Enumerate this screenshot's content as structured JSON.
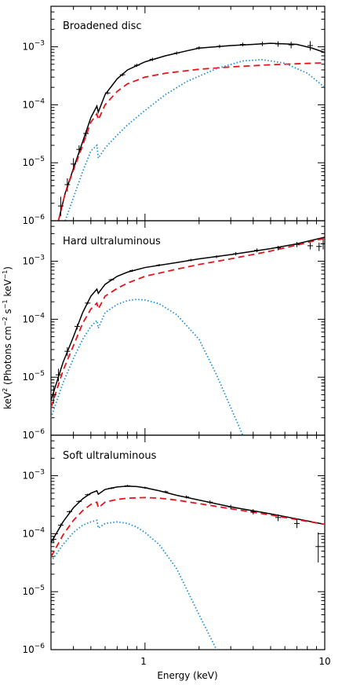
{
  "figure": {
    "ylabel_base": "keV",
    "ylabel_body": " (Photons cm",
    "ylabel_mid": " s",
    "ylabel_tail": " keV",
    "ylabel_close": ")",
    "ylabel_sup_2": "2",
    "ylabel_sup_minus2": "−2",
    "ylabel_sup_minus1": "−1",
    "xlabel": "Energy (keV)",
    "x_tick_labels": [
      "1",
      "10"
    ],
    "y_tick_labels": [
      {
        "base": "10",
        "exp": "−3"
      },
      {
        "base": "10",
        "exp": "−4"
      },
      {
        "base": "10",
        "exp": "−5"
      },
      {
        "base": "10",
        "exp": "−6"
      }
    ]
  },
  "colors": {
    "data": "#000000",
    "total_model": "#000000",
    "powerlaw_component": "#e8141b",
    "disc_component": "#1f8fd6"
  },
  "chart_data": [
    {
      "type": "line",
      "title": "Broadened disc",
      "xlabel": "Energy (keV)",
      "ylabel": "keV² (Photons cm⁻² s⁻¹ keV⁻¹)",
      "xscale": "log",
      "yscale": "log",
      "xlim": [
        0.3,
        10
      ],
      "ylim": [
        1e-06,
        0.005
      ],
      "series": [
        {
          "style": "solid",
          "color": "#000000",
          "x": [
            0.33,
            0.36,
            0.4,
            0.45,
            0.5,
            0.54,
            0.55,
            0.6,
            0.7,
            0.8,
            1.0,
            1.3,
            1.7,
            2.0,
            3.0,
            4.0,
            5.0,
            7.0,
            8.5,
            10.0
          ],
          "y": [
            1e-06,
            3e-06,
            8e-06,
            2.3e-05,
            6e-05,
            9.5e-05,
            7.5e-05,
            0.00015,
            0.00028,
            0.0004,
            0.00055,
            0.0007,
            0.00085,
            0.00095,
            0.00105,
            0.0011,
            0.00115,
            0.0011,
            0.00095,
            0.0008
          ]
        },
        {
          "style": "dashed",
          "color": "#e8141b",
          "x": [
            0.33,
            0.36,
            0.4,
            0.45,
            0.5,
            0.54,
            0.55,
            0.6,
            0.7,
            0.8,
            1.0,
            1.3,
            2.0,
            3.0,
            5.0,
            7.0,
            10.0
          ],
          "y": [
            1e-06,
            3e-06,
            7.5e-06,
            2e-05,
            5e-05,
            7e-05,
            5.5e-05,
            0.0001,
            0.00017,
            0.00023,
            0.0003,
            0.00035,
            0.00041,
            0.00045,
            0.00049,
            0.00051,
            0.00053
          ]
        },
        {
          "style": "dotted",
          "color": "#1f8fd6",
          "x": [
            0.36,
            0.4,
            0.45,
            0.5,
            0.54,
            0.55,
            0.6,
            0.7,
            0.8,
            1.0,
            1.3,
            1.7,
            2.5,
            3.5,
            4.5,
            6.0,
            8.0,
            10.0
          ],
          "y": [
            1e-06,
            2.5e-06,
            7e-06,
            1.6e-05,
            2e-05,
            1.2e-05,
            1.8e-05,
            3e-05,
            4.5e-05,
            8e-05,
            0.00015,
            0.00025,
            0.00042,
            0.00057,
            0.0006,
            0.00052,
            0.00035,
            0.0002
          ]
        }
      ],
      "data_points": [
        {
          "x": 0.34,
          "y": 1.8e-06,
          "yerr": [
            1.2e-06,
            2.6e-06
          ]
        },
        {
          "x": 0.37,
          "y": 4.2e-06,
          "yerr": [
            3.2e-06,
            5.4e-06
          ]
        },
        {
          "x": 0.4,
          "y": 9.5e-06,
          "yerr": [
            7.6e-06,
            1.2e-05
          ]
        },
        {
          "x": 0.43,
          "y": 1.7e-05,
          "yerr": [
            1.4e-05,
            2e-05
          ]
        },
        {
          "x": 0.47,
          "y": 3.2e-05,
          "yerr": [
            2.8e-05,
            3.6e-05
          ]
        },
        {
          "x": 0.62,
          "y": 0.00016,
          "yerr": [
            0.00015,
            0.00017
          ]
        },
        {
          "x": 0.75,
          "y": 0.00033,
          "yerr": [
            0.00031,
            0.00035
          ]
        },
        {
          "x": 0.9,
          "y": 0.00048,
          "yerr": [
            0.00045,
            0.00051
          ]
        },
        {
          "x": 1.1,
          "y": 0.00061,
          "yerr": [
            0.00057,
            0.00065
          ]
        },
        {
          "x": 1.5,
          "y": 0.00078,
          "yerr": [
            0.00073,
            0.00083
          ]
        },
        {
          "x": 2.0,
          "y": 0.00096,
          "yerr": [
            0.0009,
            0.00102
          ]
        },
        {
          "x": 2.6,
          "y": 0.00102,
          "yerr": [
            0.00095,
            0.00109
          ]
        },
        {
          "x": 3.5,
          "y": 0.0011,
          "yerr": [
            0.00102,
            0.00118
          ]
        },
        {
          "x": 4.5,
          "y": 0.00113,
          "yerr": [
            0.00103,
            0.00123
          ]
        },
        {
          "x": 5.5,
          "y": 0.00112,
          "yerr": [
            0.001,
            0.00124
          ]
        },
        {
          "x": 6.5,
          "y": 0.00108,
          "yerr": [
            0.00094,
            0.00122
          ]
        },
        {
          "x": 8.3,
          "y": 0.00105,
          "yerr": [
            0.00086,
            0.00125
          ]
        }
      ]
    },
    {
      "type": "line",
      "title": "Hard ultraluminous",
      "xlabel": "Energy (keV)",
      "ylabel": "keV² (Photons cm⁻² s⁻¹ keV⁻¹)",
      "xscale": "log",
      "yscale": "log",
      "xlim": [
        0.3,
        10
      ],
      "ylim": [
        1e-06,
        0.005
      ],
      "series": [
        {
          "style": "solid",
          "color": "#000000",
          "x": [
            0.3,
            0.35,
            0.4,
            0.45,
            0.5,
            0.54,
            0.55,
            0.6,
            0.7,
            0.8,
            1.0,
            1.5,
            2.0,
            3.0,
            5.0,
            7.0,
            10.0
          ],
          "y": [
            4e-06,
            1.8e-05,
            5e-05,
            0.00013,
            0.00025,
            0.00033,
            0.00028,
            0.0004,
            0.00055,
            0.00065,
            0.00078,
            0.00095,
            0.0011,
            0.0013,
            0.00165,
            0.002,
            0.0026
          ]
        },
        {
          "style": "dashed",
          "color": "#e8141b",
          "x": [
            0.3,
            0.35,
            0.4,
            0.45,
            0.5,
            0.54,
            0.55,
            0.6,
            0.7,
            0.8,
            1.0,
            1.5,
            2.0,
            3.0,
            5.0,
            7.0,
            10.0
          ],
          "y": [
            3e-06,
            1.3e-05,
            3.5e-05,
            8.5e-05,
            0.00015,
            0.00019,
            0.00015,
            0.00025,
            0.00034,
            0.00042,
            0.00055,
            0.00073,
            0.00088,
            0.0011,
            0.0015,
            0.0019,
            0.0025
          ]
        },
        {
          "style": "dotted",
          "color": "#1f8fd6",
          "x": [
            0.3,
            0.35,
            0.4,
            0.45,
            0.5,
            0.54,
            0.55,
            0.6,
            0.7,
            0.8,
            0.9,
            1.0,
            1.2,
            1.5,
            2.0,
            2.5,
            3.0,
            3.5
          ],
          "y": [
            2e-06,
            8e-06,
            2.1e-05,
            4.5e-05,
            7.5e-05,
            9.5e-05,
            7e-05,
            0.00013,
            0.00018,
            0.00021,
            0.00022,
            0.000215,
            0.000185,
            0.00012,
            4.5e-05,
            1.1e-05,
            3e-06,
            1e-06
          ]
        }
      ],
      "data_points": [
        {
          "x": 0.31,
          "y": 5e-06,
          "yerr": [
            3.5e-06,
            7e-06
          ]
        },
        {
          "x": 0.33,
          "y": 1.1e-05,
          "yerr": [
            8.5e-06,
            1.4e-05
          ]
        },
        {
          "x": 0.37,
          "y": 2.8e-05,
          "yerr": [
            2.3e-05,
            3.3e-05
          ]
        },
        {
          "x": 0.42,
          "y": 7.5e-05,
          "yerr": [
            6.7e-05,
            8.3e-05
          ]
        },
        {
          "x": 0.48,
          "y": 0.00019,
          "yerr": [
            0.00018,
            0.0002
          ]
        },
        {
          "x": 0.65,
          "y": 0.00048,
          "yerr": [
            0.00046,
            0.0005
          ]
        },
        {
          "x": 0.85,
          "y": 0.00069,
          "yerr": [
            0.00066,
            0.00072
          ]
        },
        {
          "x": 1.2,
          "y": 0.00086,
          "yerr": [
            0.00082,
            0.0009
          ]
        },
        {
          "x": 1.8,
          "y": 0.00105,
          "yerr": [
            0.001,
            0.0011
          ]
        },
        {
          "x": 2.5,
          "y": 0.0012,
          "yerr": [
            0.00113,
            0.00127
          ]
        },
        {
          "x": 3.2,
          "y": 0.00135,
          "yerr": [
            0.00126,
            0.00144
          ]
        },
        {
          "x": 4.2,
          "y": 0.00155,
          "yerr": [
            0.00143,
            0.00167
          ]
        },
        {
          "x": 5.5,
          "y": 0.0017,
          "yerr": [
            0.00155,
            0.00185
          ]
        },
        {
          "x": 7.0,
          "y": 0.00195,
          "yerr": [
            0.00175,
            0.00215
          ]
        },
        {
          "x": 8.3,
          "y": 0.00185,
          "yerr": [
            0.0016,
            0.0021
          ]
        },
        {
          "x": 9.3,
          "y": 0.0018,
          "yerr": [
            0.0015,
            0.0021
          ]
        },
        {
          "x": 9.8,
          "y": 0.002,
          "yerr": [
            0.0016,
            0.0024
          ]
        }
      ]
    },
    {
      "type": "line",
      "title": "Soft ultraluminous",
      "xlabel": "Energy (keV)",
      "ylabel": "keV² (Photons cm⁻² s⁻¹ keV⁻¹)",
      "xscale": "log",
      "yscale": "log",
      "xlim": [
        0.3,
        10
      ],
      "ylim": [
        1e-06,
        0.005
      ],
      "series": [
        {
          "style": "solid",
          "color": "#000000",
          "x": [
            0.3,
            0.35,
            0.4,
            0.45,
            0.5,
            0.54,
            0.55,
            0.6,
            0.7,
            0.8,
            0.9,
            1.0,
            1.2,
            1.5,
            2.0,
            3.0,
            5.0,
            7.0,
            10.0
          ],
          "y": [
            7e-05,
            0.00016,
            0.00028,
            0.0004,
            0.0005,
            0.00055,
            0.00048,
            0.00058,
            0.00064,
            0.00066,
            0.00065,
            0.00062,
            0.00055,
            0.00046,
            0.00038,
            0.00029,
            0.00022,
            0.00018,
            0.000145
          ]
        },
        {
          "style": "dashed",
          "color": "#e8141b",
          "x": [
            0.3,
            0.35,
            0.4,
            0.45,
            0.5,
            0.54,
            0.55,
            0.6,
            0.7,
            0.8,
            1.0,
            1.2,
            1.5,
            2.0,
            3.0,
            5.0,
            7.0,
            10.0
          ],
          "y": [
            4e-05,
            9.5e-05,
            0.00017,
            0.00025,
            0.00032,
            0.00035,
            0.00028,
            0.00035,
            0.00039,
            0.00041,
            0.00042,
            0.00041,
            0.00038,
            0.00033,
            0.00027,
            0.00021,
            0.000175,
            0.000145
          ]
        },
        {
          "style": "dotted",
          "color": "#1f8fd6",
          "x": [
            0.3,
            0.35,
            0.4,
            0.45,
            0.5,
            0.54,
            0.55,
            0.6,
            0.7,
            0.8,
            0.9,
            1.0,
            1.2,
            1.5,
            2.0,
            2.5
          ],
          "y": [
            3.3e-05,
            6.5e-05,
            0.000105,
            0.00014,
            0.00016,
            0.00017,
            0.000125,
            0.00015,
            0.00016,
            0.00015,
            0.00013,
            0.000105,
            6.5e-05,
            2.5e-05,
            4e-06,
            1e-06
          ]
        }
      ],
      "data_points": [
        {
          "x": 0.31,
          "y": 8e-05,
          "yerr": [
            7e-05,
            9e-05
          ]
        },
        {
          "x": 0.34,
          "y": 0.00014,
          "yerr": [
            0.00013,
            0.00015
          ]
        },
        {
          "x": 0.38,
          "y": 0.00024,
          "yerr": [
            0.00023,
            0.00025
          ]
        },
        {
          "x": 0.43,
          "y": 0.00036,
          "yerr": [
            0.000345,
            0.000375
          ]
        },
        {
          "x": 0.48,
          "y": 0.00047,
          "yerr": [
            0.00045,
            0.00049
          ]
        },
        {
          "x": 0.65,
          "y": 0.00061,
          "yerr": [
            0.000585,
            0.000635
          ]
        },
        {
          "x": 0.8,
          "y": 0.00067,
          "yerr": [
            0.000645,
            0.000695
          ]
        },
        {
          "x": 1.0,
          "y": 0.00062,
          "yerr": [
            0.000595,
            0.000645
          ]
        },
        {
          "x": 1.3,
          "y": 0.00053,
          "yerr": [
            0.000505,
            0.000555
          ]
        },
        {
          "x": 1.7,
          "y": 0.00043,
          "yerr": [
            0.000405,
            0.000455
          ]
        },
        {
          "x": 2.3,
          "y": 0.00035,
          "yerr": [
            0.000325,
            0.000375
          ]
        },
        {
          "x": 3.0,
          "y": 0.00029,
          "yerr": [
            0.000265,
            0.000315
          ]
        },
        {
          "x": 4.0,
          "y": 0.00024,
          "yerr": [
            0.000215,
            0.000265
          ]
        },
        {
          "x": 5.5,
          "y": 0.00019,
          "yerr": [
            0.000165,
            0.000215
          ]
        },
        {
          "x": 7.0,
          "y": 0.00015,
          "yerr": [
            0.000125,
            0.000175
          ]
        },
        {
          "x": 9.2,
          "y": 6e-05,
          "yerr": [
            3.2e-05,
            0.000105
          ]
        }
      ]
    }
  ]
}
